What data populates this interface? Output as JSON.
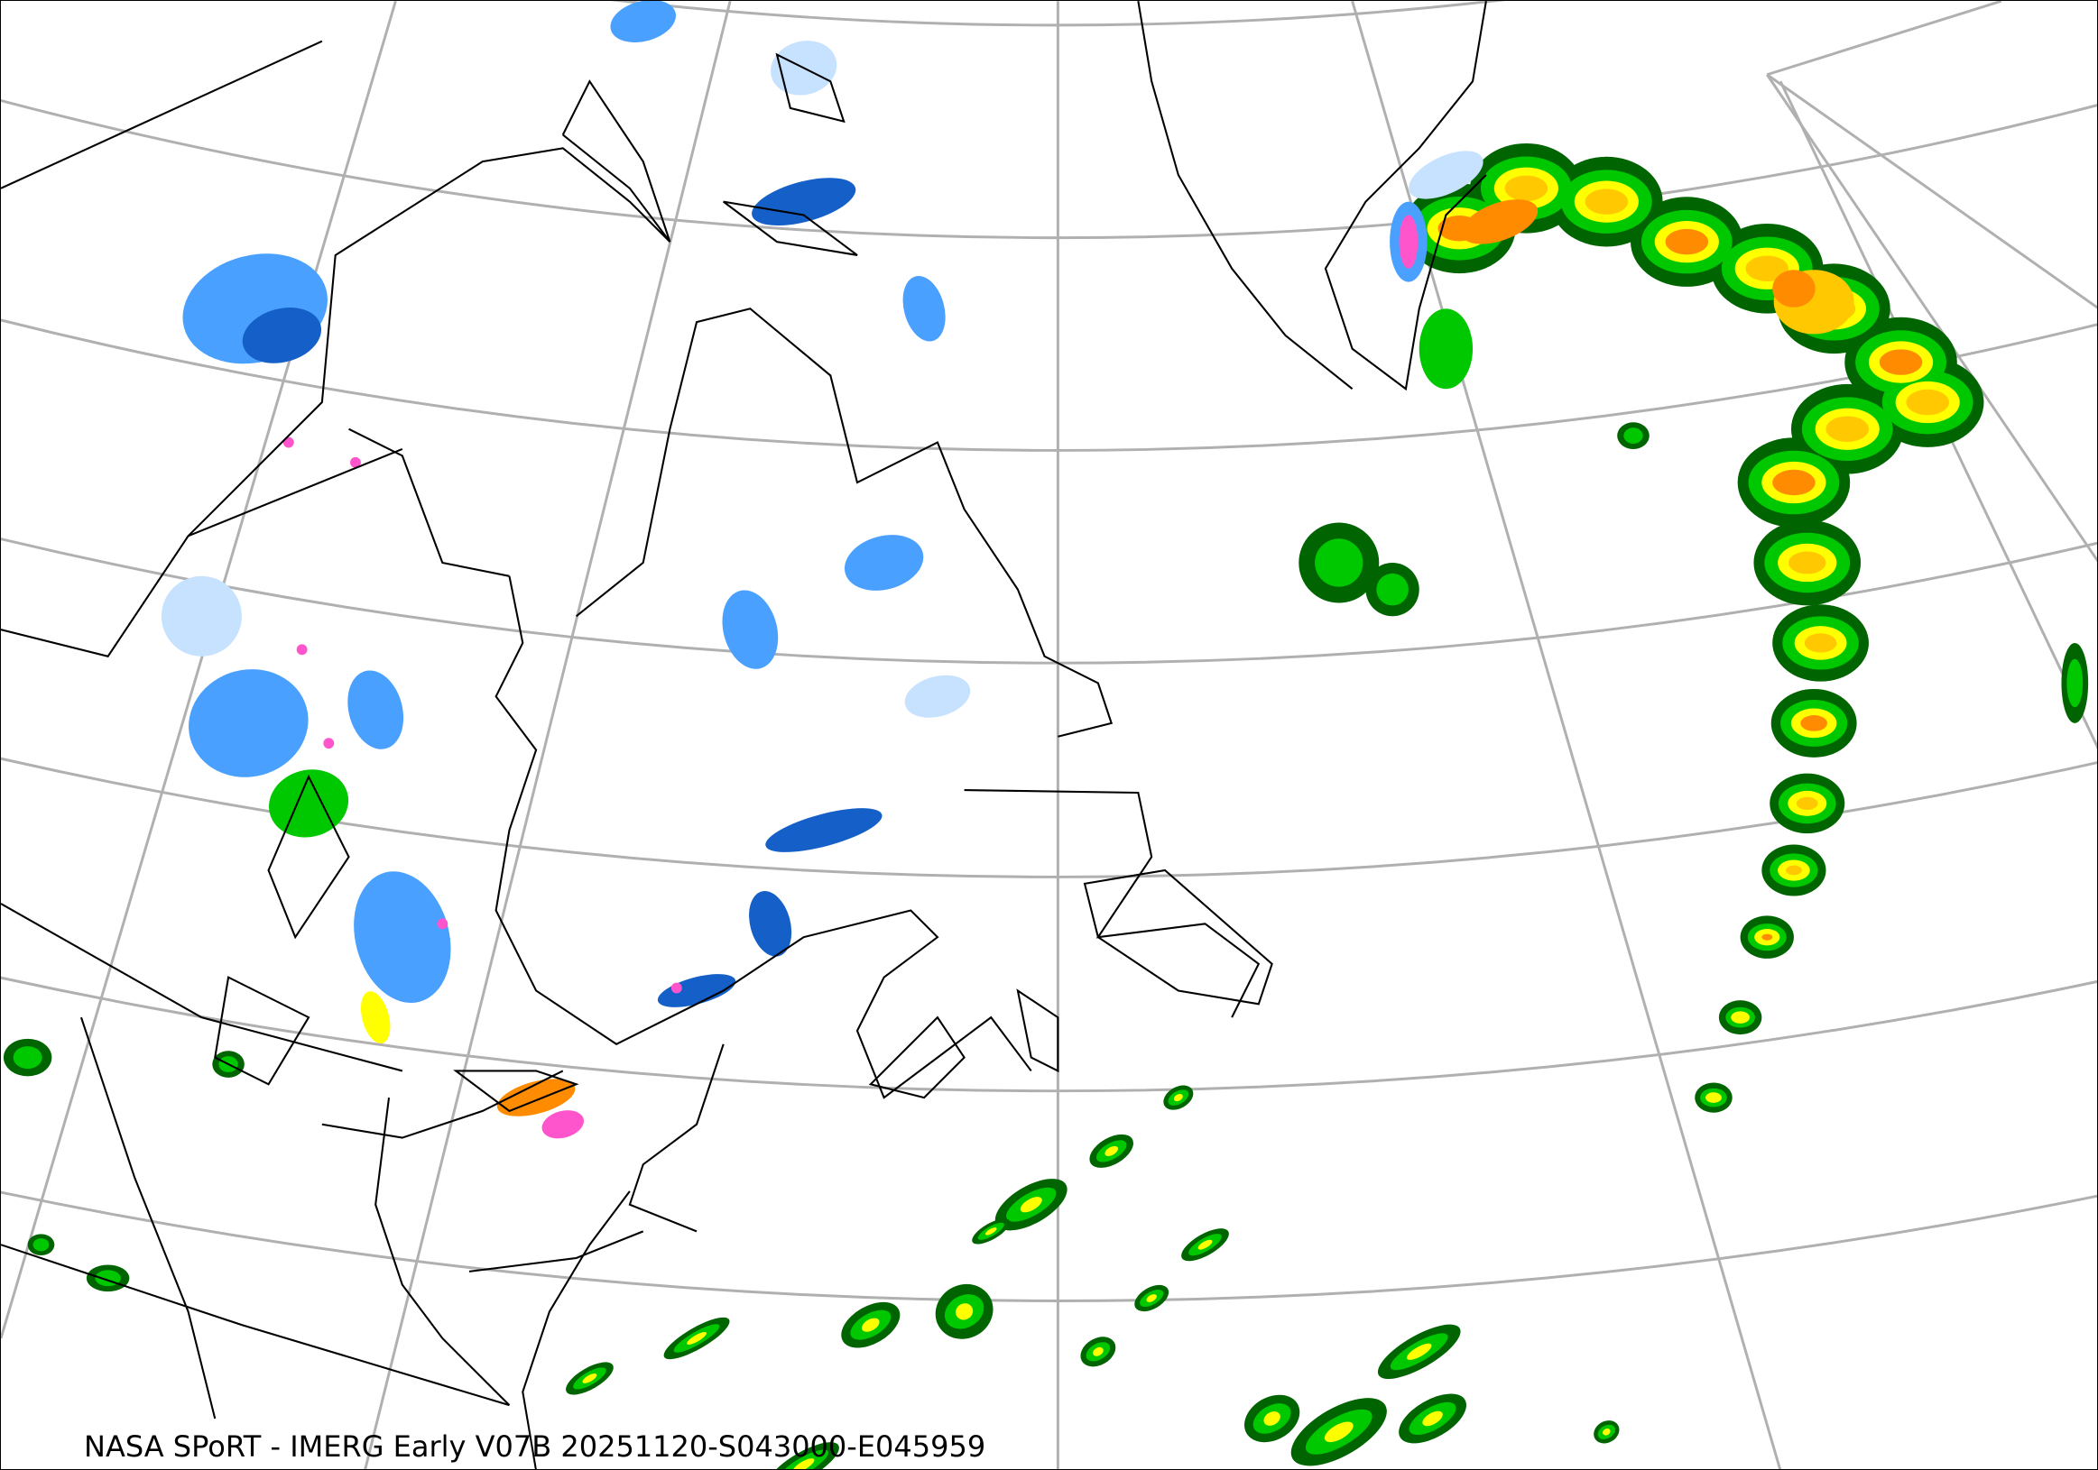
{
  "caption": "NASA SPoRT - IMERG Early V07B 20251120-S043000-E045959",
  "map": {
    "projection": "polar-stereographic-like conic",
    "region": "Northeastern North America, Greenland, North Atlantic",
    "graticule_color": "#b0b0b0",
    "coastline_color": "#000000",
    "precip_colors": {
      "light_blue": "#c6e2ff",
      "blue": "#4aa0ff",
      "dark_blue": "#1560c8",
      "pink": "#ff55cc",
      "dark_green": "#006400",
      "green": "#00c800",
      "light_green": "#7cfc00",
      "yellow": "#ffff00",
      "gold": "#ffc800",
      "orange": "#ff8c00",
      "red": "#ff2020"
    }
  }
}
